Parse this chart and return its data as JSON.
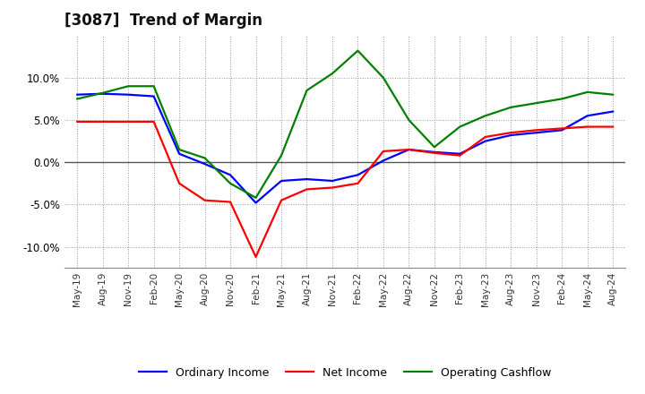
{
  "title": "[3087]  Trend of Margin",
  "x_labels": [
    "May-19",
    "Aug-19",
    "Nov-19",
    "Feb-20",
    "May-20",
    "Aug-20",
    "Nov-20",
    "Feb-21",
    "May-21",
    "Aug-21",
    "Nov-21",
    "Feb-22",
    "May-22",
    "Aug-22",
    "Nov-22",
    "Feb-23",
    "May-23",
    "Aug-23",
    "Nov-23",
    "Feb-24",
    "May-24",
    "Aug-24"
  ],
  "ordinary_income": [
    8.0,
    8.1,
    8.0,
    7.8,
    1.0,
    -0.2,
    -1.5,
    -4.8,
    -2.2,
    -2.0,
    -2.2,
    -1.5,
    0.2,
    1.5,
    1.2,
    1.0,
    2.5,
    3.2,
    3.5,
    3.8,
    5.5,
    6.0
  ],
  "net_income": [
    4.8,
    4.8,
    4.8,
    4.8,
    -2.5,
    -4.5,
    -4.7,
    -11.2,
    -4.5,
    -3.2,
    -3.0,
    -2.5,
    1.3,
    1.5,
    1.1,
    0.8,
    3.0,
    3.5,
    3.8,
    4.0,
    4.2,
    4.2
  ],
  "operating_cashflow": [
    7.5,
    8.2,
    9.0,
    9.0,
    1.5,
    0.5,
    -2.5,
    -4.2,
    0.8,
    8.5,
    10.5,
    13.2,
    10.0,
    5.0,
    1.8,
    4.2,
    5.5,
    6.5,
    7.0,
    7.5,
    8.3,
    8.0
  ],
  "ylim": [
    -12.5,
    15.0
  ],
  "yticks": [
    -10.0,
    -5.0,
    0.0,
    5.0,
    10.0
  ],
  "line_colors": {
    "ordinary_income": "#0000FF",
    "net_income": "#FF0000",
    "operating_cashflow": "#008000"
  },
  "legend_labels": [
    "Ordinary Income",
    "Net Income",
    "Operating Cashflow"
  ],
  "background_color": "#FFFFFF",
  "plot_bg_color": "#FFFFFF",
  "grid_color": "#999999",
  "linewidth": 1.6
}
